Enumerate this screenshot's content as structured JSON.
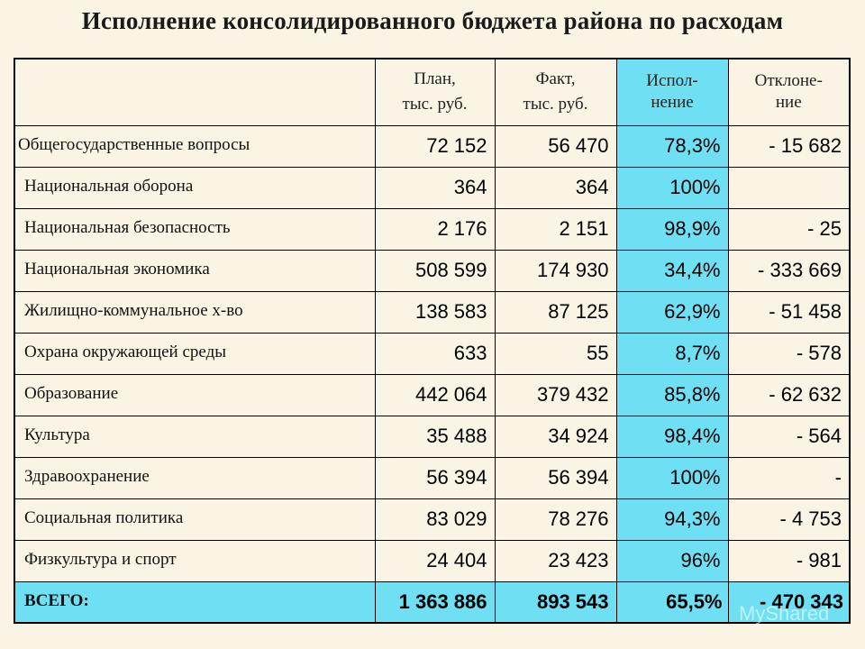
{
  "title": "Исполнение консолидированного бюджета района по расходам",
  "header": {
    "plan": [
      "План,",
      "тыс. руб."
    ],
    "fact": [
      "Факт,",
      "тыс. руб."
    ],
    "execution": [
      "Испол-",
      "нение"
    ],
    "deviation": [
      "Отклоне-",
      "ние"
    ]
  },
  "rows": [
    {
      "name": "Общегосударственные вопросы",
      "plan": "72 152",
      "fact": "56 470",
      "execution": "78,3%",
      "deviation": "- 15 682"
    },
    {
      "name": "Национальная оборона",
      "plan": "364",
      "fact": "364",
      "execution": "100%",
      "deviation": ""
    },
    {
      "name": "Национальная безопасность",
      "plan": "2 176",
      "fact": "2 151",
      "execution": "98,9%",
      "deviation": "- 25"
    },
    {
      "name": "Национальная экономика",
      "plan": "508 599",
      "fact": "174 930",
      "execution": "34,4%",
      "deviation": "- 333 669"
    },
    {
      "name": "Жилищно-коммунальное х-во",
      "plan": "138 583",
      "fact": "87 125",
      "execution": "62,9%",
      "deviation": "- 51 458"
    },
    {
      "name": "Охрана окружающей среды",
      "plan": "633",
      "fact": "55",
      "execution": "8,7%",
      "deviation": "- 578"
    },
    {
      "name": "Образование",
      "plan": "442 064",
      "fact": "379 432",
      "execution": "85,8%",
      "deviation": "- 62 632"
    },
    {
      "name": "Культура",
      "plan": "35 488",
      "fact": "34 924",
      "execution": "98,4%",
      "deviation": "- 564"
    },
    {
      "name": "Здравоохранение",
      "plan": "56 394",
      "fact": "56 394",
      "execution": "100%",
      "deviation": "-"
    },
    {
      "name": "Социальная политика",
      "plan": "83 029",
      "fact": "78 276",
      "execution": "94,3%",
      "deviation": "- 4 753"
    },
    {
      "name": "Физкультура и спорт",
      "plan": "24 404",
      "fact": "23 423",
      "execution": "96%",
      "deviation": "- 981"
    }
  ],
  "total": {
    "name": "ВСЕГО:",
    "plan": "1 363 886",
    "fact": "893 543",
    "execution": "65,5%",
    "deviation": "- 470 343"
  },
  "watermark": "MyShared",
  "colors": {
    "background": "#f9f4e3",
    "highlight": "#6fe0f4"
  }
}
